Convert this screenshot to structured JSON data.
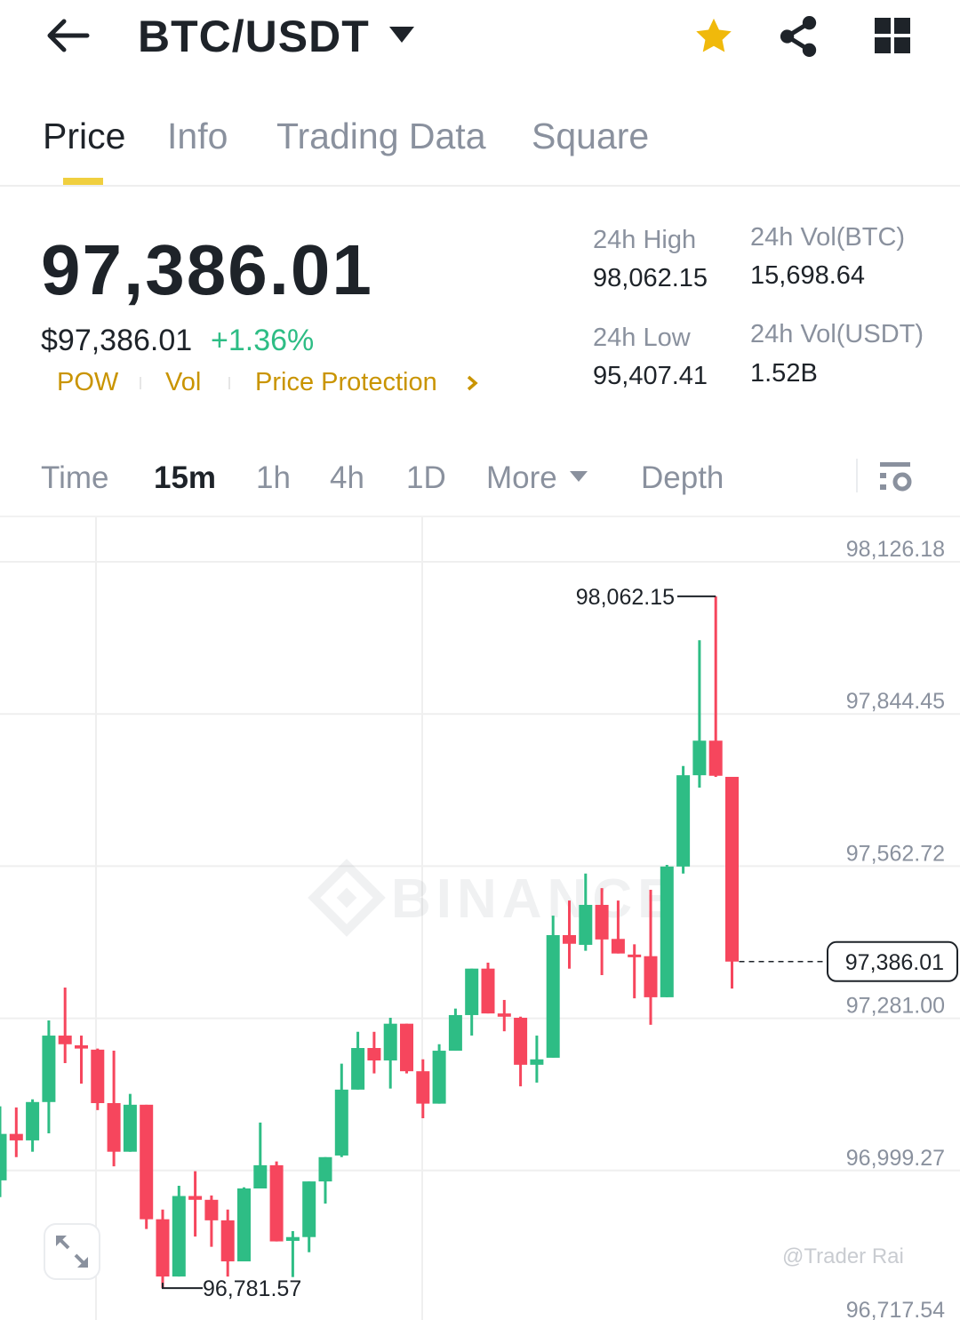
{
  "header": {
    "title": "BTC/USDT",
    "icons": [
      "back-arrow-icon",
      "dropdown-caret-icon",
      "star-icon",
      "share-icon",
      "grid-icon"
    ],
    "star_color": "#f0b90b"
  },
  "tabs": [
    {
      "label": "Price",
      "active": true
    },
    {
      "label": "Info",
      "active": false
    },
    {
      "label": "Trading Data",
      "active": false
    },
    {
      "label": "Square",
      "active": false
    }
  ],
  "ticker": {
    "last_price": "97,386.01",
    "usd_price": "$97,386.01",
    "change_pct": "+1.36%",
    "tags": [
      "POW",
      "Vol",
      "Price Protection"
    ],
    "high_label": "24h High",
    "high_value": "98,062.15",
    "low_label": "24h Low",
    "low_value": "95,407.41",
    "vol_btc_label": "24h Vol(BTC)",
    "vol_btc_value": "15,698.64",
    "vol_usdt_label": "24h Vol(USDT)",
    "vol_usdt_value": "1.52B"
  },
  "intervals": [
    {
      "label": "Time",
      "active": false
    },
    {
      "label": "15m",
      "active": true
    },
    {
      "label": "1h",
      "active": false
    },
    {
      "label": "4h",
      "active": false
    },
    {
      "label": "1D",
      "active": false
    },
    {
      "label": "More",
      "active": false
    },
    {
      "label": "Depth",
      "active": false
    }
  ],
  "colors": {
    "up": "#2ebd85",
    "down": "#f6465d",
    "accent": "#f0b90b",
    "tag": "#c99400"
  },
  "watermark": "BINANCE",
  "credit": "@Trader Rai",
  "chart_data": {
    "type": "candlestick",
    "interval": "15m",
    "ylim": [
      96717.54,
      98126.18
    ],
    "y_ticks": [
      "98,126.18",
      "97,844.45",
      "97,562.72",
      "97,281.00",
      "96,999.27",
      "96,717.54"
    ],
    "y_tick_values": [
      98126.18,
      97844.45,
      97562.72,
      97281.0,
      96999.27,
      96717.54
    ],
    "grid": true,
    "high_marker": {
      "label": "98,062.15",
      "value": 98062.15
    },
    "low_marker": {
      "label": "96,781.57",
      "value": 96781.57
    },
    "last_price": {
      "label": "97,386.01",
      "value": 97386.01
    },
    "candles": [
      {
        "o": 96981,
        "h": 97118,
        "l": 96950,
        "c": 97067
      },
      {
        "o": 97067,
        "h": 97116,
        "l": 97024,
        "c": 97055
      },
      {
        "o": 97055,
        "h": 97131,
        "l": 97034,
        "c": 97126
      },
      {
        "o": 97126,
        "h": 97277,
        "l": 97068,
        "c": 97249
      },
      {
        "o": 97249,
        "h": 97338,
        "l": 97198,
        "c": 97233
      },
      {
        "o": 97231,
        "h": 97249,
        "l": 97160,
        "c": 97225
      },
      {
        "o": 97223,
        "h": 97225,
        "l": 97111,
        "c": 97124
      },
      {
        "o": 97124,
        "h": 97221,
        "l": 97007,
        "c": 97034
      },
      {
        "o": 97034,
        "h": 97141,
        "l": 97034,
        "c": 97121
      },
      {
        "o": 97121,
        "h": 97121,
        "l": 96891,
        "c": 96909
      },
      {
        "o": 96909,
        "h": 96927,
        "l": 96781.57,
        "c": 96803
      },
      {
        "o": 96803,
        "h": 96971,
        "l": 96803,
        "c": 96952
      },
      {
        "o": 96952,
        "h": 96998,
        "l": 96877,
        "c": 96945
      },
      {
        "o": 96945,
        "h": 96953,
        "l": 96858,
        "c": 96907
      },
      {
        "o": 96907,
        "h": 96927,
        "l": 96803,
        "c": 96831
      },
      {
        "o": 96831,
        "h": 96968,
        "l": 96831,
        "c": 96966
      },
      {
        "o": 96966,
        "h": 97088,
        "l": 96966,
        "c": 97009
      },
      {
        "o": 97009,
        "h": 97016,
        "l": 96868,
        "c": 96868
      },
      {
        "o": 96869,
        "h": 96887,
        "l": 96802,
        "c": 96876
      },
      {
        "o": 96876,
        "h": 96979,
        "l": 96848,
        "c": 96979
      },
      {
        "o": 96979,
        "h": 97024,
        "l": 96938,
        "c": 97024
      },
      {
        "o": 97027,
        "h": 97197,
        "l": 97024,
        "c": 97149
      },
      {
        "o": 97149,
        "h": 97256,
        "l": 97149,
        "c": 97226
      },
      {
        "o": 97226,
        "h": 97256,
        "l": 97179,
        "c": 97203
      },
      {
        "o": 97203,
        "h": 97282,
        "l": 97151,
        "c": 97271
      },
      {
        "o": 97271,
        "h": 97271,
        "l": 97179,
        "c": 97183
      },
      {
        "o": 97183,
        "h": 97205,
        "l": 97096,
        "c": 97123
      },
      {
        "o": 97123,
        "h": 97233,
        "l": 97123,
        "c": 97221
      },
      {
        "o": 97221,
        "h": 97299,
        "l": 97221,
        "c": 97287
      },
      {
        "o": 97287,
        "h": 97373,
        "l": 97249,
        "c": 97373
      },
      {
        "o": 97373,
        "h": 97384,
        "l": 97290,
        "c": 97290
      },
      {
        "o": 97290,
        "h": 97315,
        "l": 97257,
        "c": 97284
      },
      {
        "o": 97282,
        "h": 97284,
        "l": 97155,
        "c": 97195
      },
      {
        "o": 97195,
        "h": 97249,
        "l": 97162,
        "c": 97205
      },
      {
        "o": 97208,
        "h": 97471,
        "l": 97208,
        "c": 97435
      },
      {
        "o": 97435,
        "h": 97499,
        "l": 97373,
        "c": 97419
      },
      {
        "o": 97417,
        "h": 97549,
        "l": 97406,
        "c": 97491
      },
      {
        "o": 97491,
        "h": 97522,
        "l": 97361,
        "c": 97427
      },
      {
        "o": 97428,
        "h": 97499,
        "l": 97401,
        "c": 97401
      },
      {
        "o": 97399,
        "h": 97418,
        "l": 97318,
        "c": 97396
      },
      {
        "o": 97396,
        "h": 97519,
        "l": 97269,
        "c": 97320
      },
      {
        "o": 97320,
        "h": 97565,
        "l": 97320,
        "c": 97562
      },
      {
        "o": 97562,
        "h": 97748,
        "l": 97549,
        "c": 97731
      },
      {
        "o": 97731,
        "h": 97981,
        "l": 97708,
        "c": 97795
      },
      {
        "o": 97795,
        "h": 98062.15,
        "l": 97728,
        "c": 97730
      },
      {
        "o": 97728,
        "h": 97728,
        "l": 97336,
        "c": 97386.01
      }
    ]
  }
}
